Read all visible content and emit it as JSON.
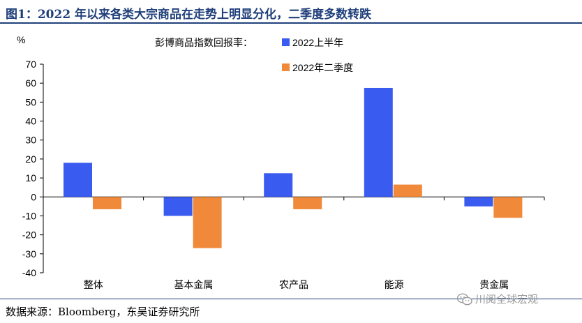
{
  "header": {
    "title": "图1：2022 年以来各类大宗商品在走势上明显分化，二季度多数转跌"
  },
  "footer": {
    "source": "数据来源：Bloomberg，东吴证券研究所",
    "watermark": "川阅全球宏观"
  },
  "colors": {
    "title": "#1f3f7a",
    "series_h1": "#3a5bef",
    "series_q2": "#f08a3a"
  },
  "chart_data": {
    "type": "bar",
    "title": "彭博商品指数回报率：",
    "ylabel": "%",
    "xlabel": "",
    "ylim": [
      -40,
      70
    ],
    "yticks": [
      70,
      60,
      50,
      40,
      30,
      20,
      10,
      0,
      -10,
      -20,
      -30,
      -40
    ],
    "grid": false,
    "legend_position": "top-right",
    "categories": [
      "整体",
      "基本金属",
      "农产品",
      "能源",
      "贵金属"
    ],
    "series": [
      {
        "name": "2022上半年",
        "color": "#3a5bef",
        "values": [
          18,
          -10,
          12.5,
          57.5,
          -5
        ]
      },
      {
        "name": "2022年二季度",
        "color": "#f08a3a",
        "values": [
          -6.5,
          -27,
          -6.5,
          6.5,
          -11
        ]
      }
    ]
  }
}
